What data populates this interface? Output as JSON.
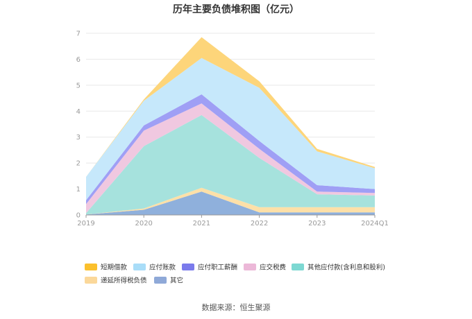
{
  "chart_data": {
    "type": "area",
    "title": "历年主要负债堆积图（亿元）",
    "x": [
      "2019",
      "2020",
      "2021",
      "2022",
      "2023",
      "2024Q1"
    ],
    "y_ticks": [
      "0",
      "1",
      "2",
      "3",
      "4",
      "5",
      "6",
      "7"
    ],
    "ylim": [
      0,
      7
    ],
    "grid": true,
    "legend_position": "bottom",
    "series": [
      {
        "name": "其它",
        "color": "#8fb0dc",
        "values": [
          0.02,
          0.2,
          0.9,
          0.1,
          0.1,
          0.1
        ]
      },
      {
        "name": "递延所得税负债",
        "color": "#fde0a8",
        "values": [
          0.0,
          0.05,
          0.15,
          0.2,
          0.2,
          0.2
        ]
      },
      {
        "name": "其他应付款(含利息和股利)",
        "color": "#a6e2dd",
        "values": [
          0.05,
          2.4,
          2.8,
          1.9,
          0.5,
          0.45
        ]
      },
      {
        "name": "应交税费",
        "color": "#f0c8e0",
        "values": [
          0.35,
          0.6,
          0.45,
          0.35,
          0.1,
          0.1
        ]
      },
      {
        "name": "应付职工薪酬",
        "color": "#9f9ff5",
        "values": [
          0.15,
          0.2,
          0.35,
          0.3,
          0.25,
          0.15
        ]
      },
      {
        "name": "应付账款",
        "color": "#c6e8fb",
        "values": [
          0.9,
          0.95,
          1.4,
          2.05,
          1.3,
          0.8
        ]
      },
      {
        "name": "短期借款",
        "color": "#fdd57a",
        "values": [
          0.0,
          0.05,
          0.8,
          0.25,
          0.1,
          0.05
        ]
      }
    ],
    "legend": [
      {
        "name": "短期借款",
        "color": "#fbc02d"
      },
      {
        "name": "应付账款",
        "color": "#a9ddf8"
      },
      {
        "name": "应付职工薪酬",
        "color": "#7b7bec"
      },
      {
        "name": "应交税费",
        "color": "#ecb8d8"
      },
      {
        "name": "其他应付款(含利息和股利)",
        "color": "#7dd8d2"
      },
      {
        "name": "递延所得税负债",
        "color": "#fbd89a"
      },
      {
        "name": "其它",
        "color": "#8fa9d8"
      }
    ]
  },
  "source": "数据来源：恒生聚源"
}
